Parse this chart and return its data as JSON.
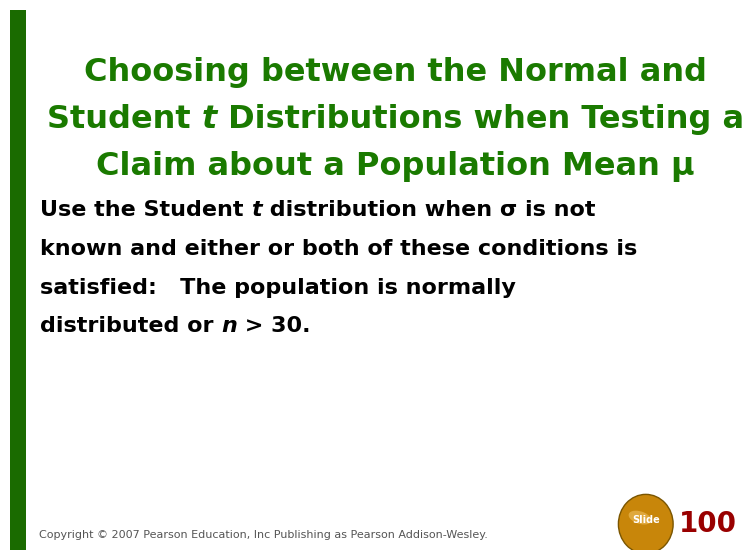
{
  "bg_color": "#ffffff",
  "left_bar_color": "#1a6b00",
  "title_line1": "Choosing between the Normal and",
  "title_line2_pre": "Student ",
  "title_line2_italic": "t",
  "title_line2_post": " Distributions when Testing a",
  "title_line3": "Claim about a Population Mean μ",
  "title_color": "#1a7a00",
  "title_fontsize": 23,
  "body_line1_pre": "Use the Student ",
  "body_line1_italic": "t",
  "body_line1_post": " distribution when σ is not",
  "body_line2": "known and either or both of these conditions is",
  "body_line3": "satisfied:   The population is normally",
  "body_line4_pre": "distributed or ",
  "body_line4_italic": "n",
  "body_line4_post": " > 30.",
  "body_color": "#000000",
  "body_fontsize": 16,
  "copyright_text": "Copyright © 2007 Pearson Education, Inc Publishing as Pearson Addison-Wesley.",
  "copyright_fontsize": 8,
  "slide_number": "100",
  "slide_number_color": "#990000",
  "slide_number_fontsize": 20,
  "slide_ball_color": "#c8860a"
}
